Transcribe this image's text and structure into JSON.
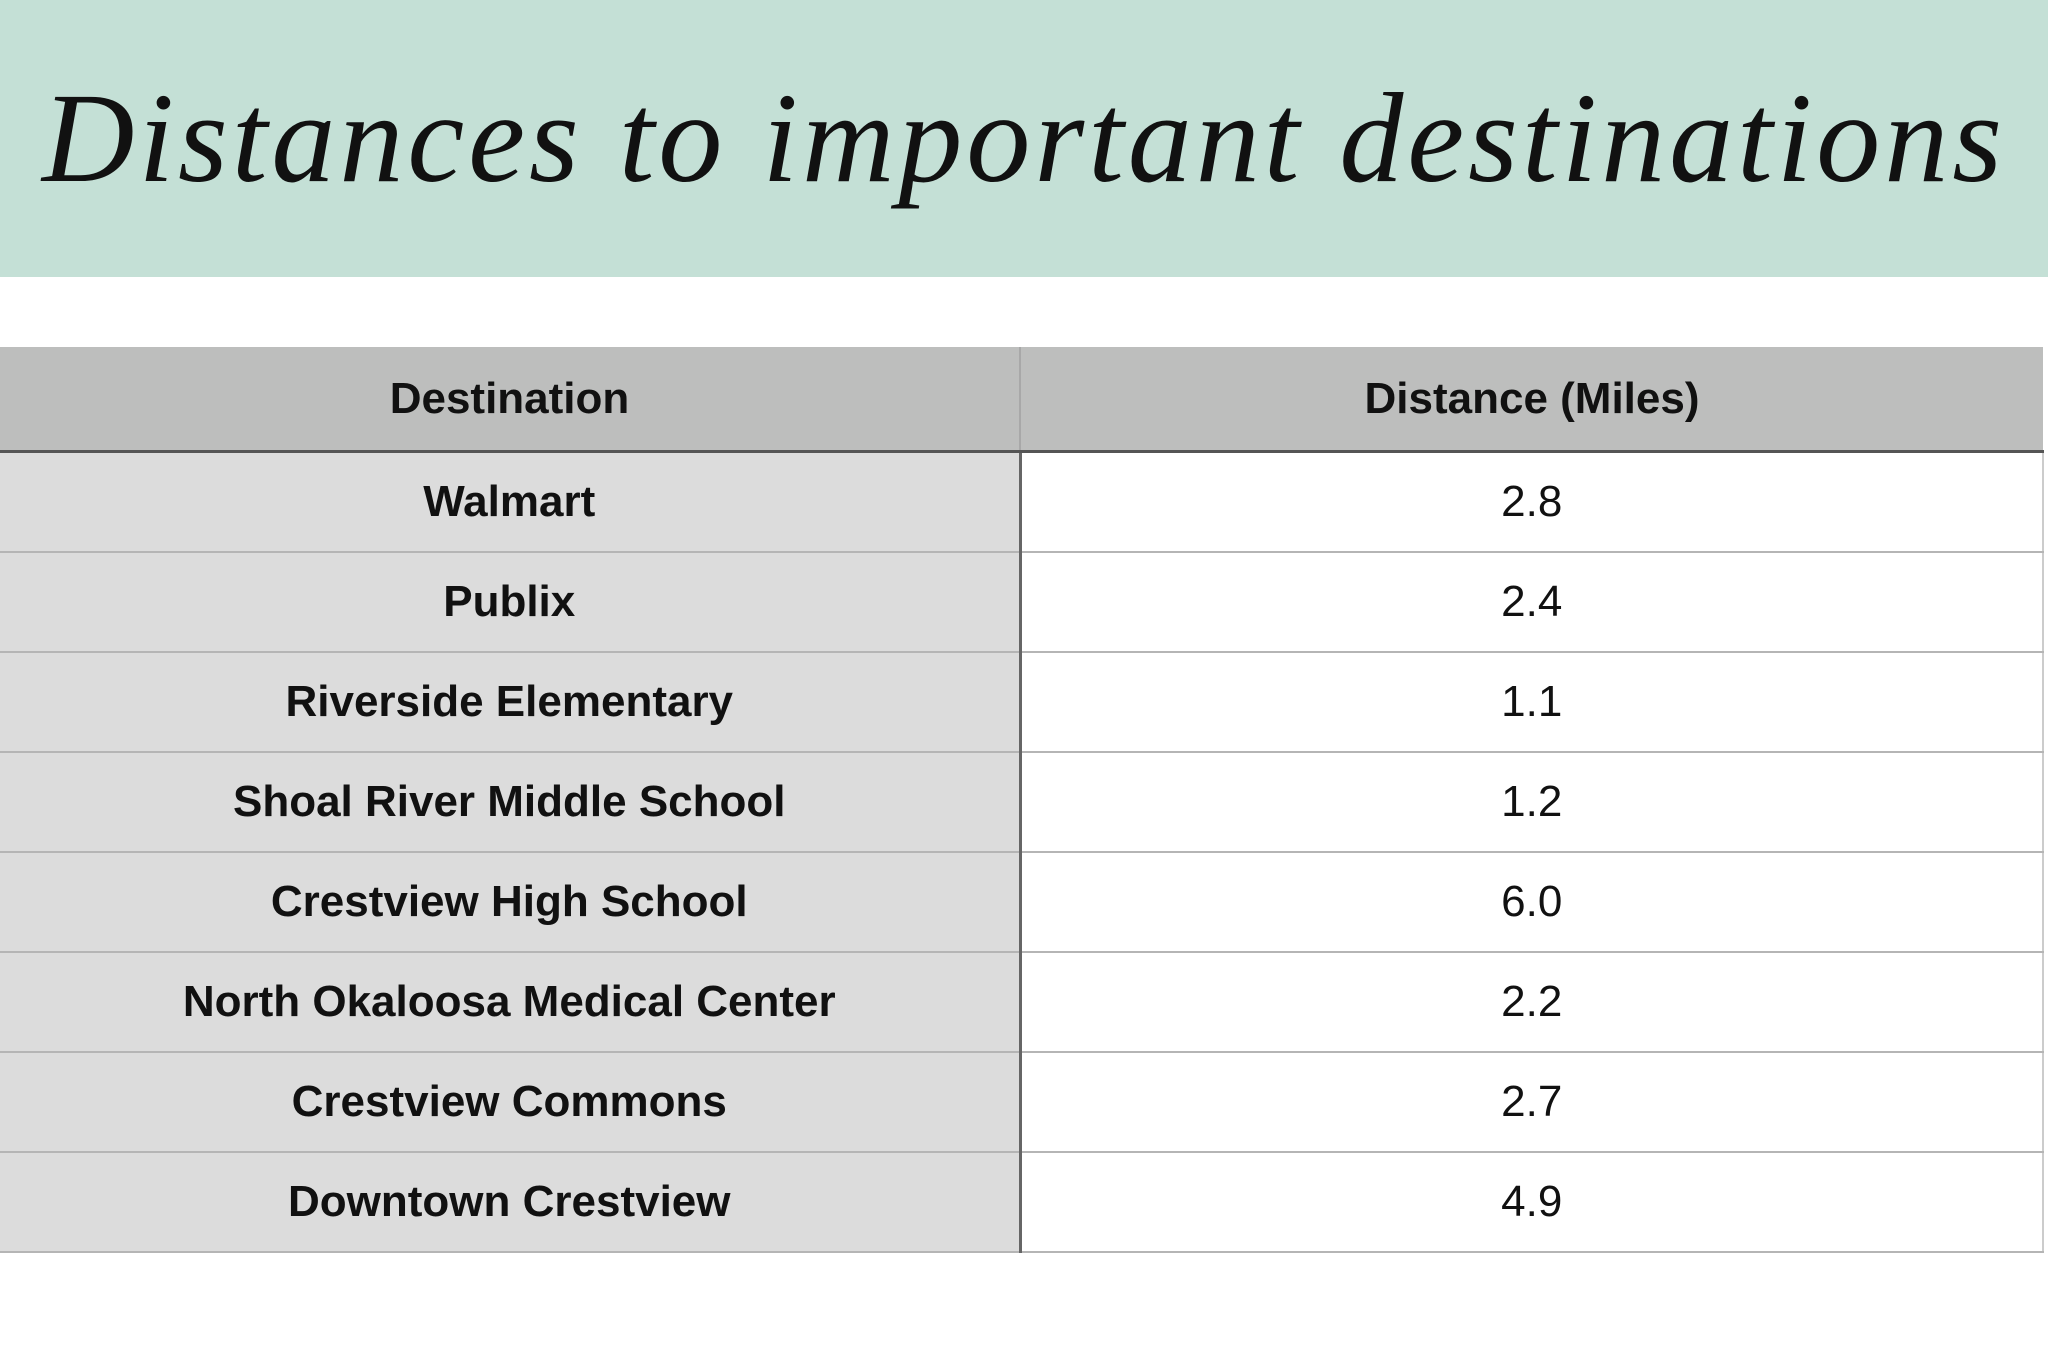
{
  "header": {
    "title": "Distances to important destinations"
  },
  "table": {
    "columns": [
      "Destination",
      "Distance (Miles)"
    ],
    "rows": [
      [
        "Walmart",
        "2.8"
      ],
      [
        "Publix",
        "2.4"
      ],
      [
        "Riverside Elementary",
        "1.1"
      ],
      [
        "Shoal River Middle School",
        "1.2"
      ],
      [
        "Crestview High School",
        "6.0"
      ],
      [
        "North Okaloosa Medical Center",
        "2.2"
      ],
      [
        "Crestview Commons",
        "2.7"
      ],
      [
        "Downtown Crestview",
        "4.9"
      ]
    ]
  }
}
